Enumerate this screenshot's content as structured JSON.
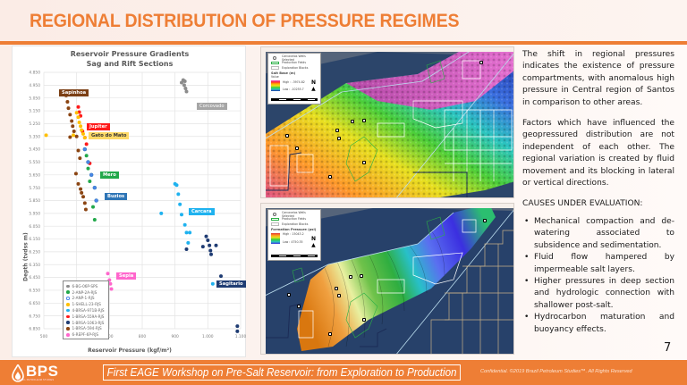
{
  "slide": {
    "title": "REGIONAL DISTRIBUTION OF PRESSURE REGIMES",
    "accent_color": "#ee7e35",
    "page_number": "7"
  },
  "chart": {
    "title_line1": "Reservoir Pressure Gradients",
    "title_line2": "Sag and Rift Sections",
    "ylabel": "Depth (tvdss m)",
    "xlabel": "Reservoir Pressure (kgf/m²)",
    "x_ticks": [
      "500",
      "600",
      "700",
      "800",
      "900",
      "1.000",
      "1.100"
    ],
    "y_ticks": [
      "4.850",
      "4.950",
      "5.050",
      "5.150",
      "5.250",
      "5.350",
      "5.450",
      "5.550",
      "5.650",
      "5.750",
      "5.850",
      "5.950",
      "6.050",
      "6.150",
      "6.250",
      "6.350",
      "6.450",
      "6.550",
      "6.650",
      "6.750",
      "6.850"
    ],
    "legend": [
      {
        "label": "6-BG-06P-SPS",
        "color": "#8c8c8c"
      },
      {
        "label": "2-ANP-2A-RJS",
        "color": "#22a84a"
      },
      {
        "label": "2-ANP-1-RJS",
        "color": "#4a86e8",
        "hollow": true
      },
      {
        "label": "1-SHELL-23-RJS",
        "color": "#ffc000"
      },
      {
        "label": "4-BRSA-971B-RJS",
        "color": "#1fb2ef"
      },
      {
        "label": "1-BRSA-559A-RJS",
        "color": "#ff1a1a"
      },
      {
        "label": "1-BRSA-1063-RJS",
        "color": "#1f3c73"
      },
      {
        "label": "1-BRSA-594-RJS",
        "color": "#8b4513"
      },
      {
        "label": "6-REPF-6P-RJS",
        "color": "#ff66cc"
      }
    ],
    "series_labels": [
      {
        "text": "Sapinhoa",
        "color": "#7b3f15"
      },
      {
        "text": "Jupiter",
        "color": "#ff1a1a"
      },
      {
        "text": "Gato do Mato",
        "color": "#ffd966",
        "text_color": "#333333"
      },
      {
        "text": "Corcovado",
        "color": "#a6a6a6"
      },
      {
        "text": "Mero",
        "color": "#22a84a"
      },
      {
        "text": "Buzios",
        "color": "#2e75b6"
      },
      {
        "text": "Carcara",
        "color": "#1fb2ef"
      },
      {
        "text": "Sagitario",
        "color": "#1f3c73"
      },
      {
        "text": "Sepia",
        "color": "#ff66cc"
      }
    ]
  },
  "chart_data": {
    "type": "scatter",
    "title": "Reservoir Pressure Gradients — Sag and Rift Sections",
    "xlabel": "Reservoir Pressure (kgf/m²)",
    "ylabel": "Depth (tvdss m)",
    "xlim": [
      500,
      1100
    ],
    "ylim": [
      6850,
      4850
    ],
    "y_inverted": true,
    "grid": true,
    "legend_position": "lower-left inside",
    "series": [
      {
        "name": "6-BG-06P-SPS",
        "field": "Corcovado",
        "color": "#8c8c8c",
        "points": [
          [
            920,
            4930
          ],
          [
            925,
            4910
          ],
          [
            930,
            4920
          ],
          [
            928,
            4950
          ],
          [
            932,
            4975
          ],
          [
            935,
            5000
          ]
        ]
      },
      {
        "name": "1-BRSA-594-RJS",
        "field": "Sapinhoa",
        "color": "#8b4513",
        "points": [
          [
            568,
            5030
          ],
          [
            572,
            5080
          ],
          [
            575,
            5130
          ],
          [
            580,
            5180
          ],
          [
            585,
            5230
          ],
          [
            588,
            5270
          ],
          [
            592,
            5310
          ],
          [
            580,
            5355
          ],
          [
            600,
            5350
          ],
          [
            605,
            5460
          ],
          [
            610,
            5520
          ],
          [
            598,
            5640
          ],
          [
            605,
            5720
          ],
          [
            612,
            5760
          ],
          [
            615,
            5790
          ],
          [
            620,
            5820
          ],
          [
            625,
            5870
          ],
          [
            628,
            5920
          ]
        ]
      },
      {
        "name": "1-BRSA-559A-RJS",
        "field": "Jupiter",
        "color": "#ff1a1a",
        "points": [
          [
            605,
            5120
          ],
          [
            608,
            5160
          ],
          [
            612,
            5190
          ],
          [
            618,
            5310
          ],
          [
            625,
            5360
          ],
          [
            630,
            5410
          ],
          [
            640,
            5560
          ]
        ]
      },
      {
        "name": "1-SHELL-23-RJS",
        "field": "Gato do Mato",
        "color": "#ffc000",
        "points": [
          [
            507,
            5340
          ],
          [
            590,
            5340
          ],
          [
            600,
            5165
          ],
          [
            605,
            5200
          ],
          [
            608,
            5240
          ],
          [
            612,
            5270
          ],
          [
            615,
            5300
          ],
          [
            620,
            5330
          ],
          [
            625,
            5360
          ]
        ]
      },
      {
        "name": "2-ANP-2A-RJS",
        "field": "Mero",
        "color": "#22a84a",
        "points": [
          [
            630,
            5500
          ],
          [
            635,
            5600
          ],
          [
            640,
            5700
          ],
          [
            650,
            5900
          ],
          [
            655,
            6000
          ]
        ]
      },
      {
        "name": "2-ANP-1-RJS",
        "field": "Buzios",
        "color": "#4a86e8",
        "points": [
          [
            625,
            5450
          ],
          [
            635,
            5550
          ],
          [
            645,
            5650
          ],
          [
            655,
            5750
          ],
          [
            660,
            5850
          ]
        ]
      },
      {
        "name": "4-BRSA-971B-RJS",
        "field": "Carcara",
        "color": "#1fb2ef",
        "points": [
          [
            900,
            5720
          ],
          [
            905,
            5730
          ],
          [
            910,
            5800
          ],
          [
            915,
            5880
          ],
          [
            920,
            5960
          ],
          [
            930,
            6040
          ],
          [
            935,
            6100
          ],
          [
            945,
            6100
          ],
          [
            940,
            6180
          ],
          [
            858,
            5950
          ],
          [
            1015,
            6500
          ]
        ]
      },
      {
        "name": "1-BRSA-1063-RJS",
        "field": "Sagitario",
        "color": "#1f3c73",
        "points": [
          [
            935,
            6230
          ],
          [
            985,
            6210
          ],
          [
            995,
            6130
          ],
          [
            1000,
            6160
          ],
          [
            1005,
            6200
          ],
          [
            1008,
            6240
          ],
          [
            1010,
            6270
          ],
          [
            1025,
            6200
          ],
          [
            1040,
            6440
          ],
          [
            1090,
            6830
          ],
          [
            1090,
            6870
          ]
        ]
      },
      {
        "name": "6-REPF-6P-RJS",
        "field": "Sepia",
        "color": "#ff66cc",
        "points": [
          [
            695,
            6420
          ],
          [
            700,
            6470
          ],
          [
            703,
            6500
          ],
          [
            706,
            6540
          ]
        ]
      }
    ]
  },
  "maps": {
    "top": {
      "legend_items": [
        "Carcavelos Wells Selected",
        "Production Fields",
        "Exploration Blocks"
      ],
      "layer_title": "Salt Base (m)",
      "layer_sub": "Value",
      "high_label": "High : -3974.82",
      "low_label": "Low : -10255.7",
      "north": "N"
    },
    "bottom": {
      "legend_items": [
        "Carcavelos Wells Selected",
        "Production Fields",
        "Exploration Blocks"
      ],
      "layer_title": "Formation Pressure (psi)",
      "high_label": "High : 15043.2",
      "low_label": "Low : 4750.35",
      "north": "N"
    }
  },
  "text": {
    "paragraph1": "The shift in regional pressures indicates the existence of pressure compartments, with anomalous high pressure in Central region of Santos in comparison to other areas.",
    "paragraph2": "Factors which have influenced the geopressured distribution are not independent of each other. The regional variation is created by fluid movement and its blocking in lateral or vertical directions.",
    "causes_title": "CAUSES UNDER EVALUATION:",
    "causes": [
      "Mechanical compaction and de-watering associated to subsidence and sedimentation.",
      "Fluid flow hampered by impermeable salt layers.",
      "Higher pressures in deep section and hydrologic connection with shallower post-salt.",
      "Hydrocarbon maturation and buoyancy effects."
    ]
  },
  "footer": {
    "logo": "BPS",
    "logo_sub": "BRAZIL PETROLEUM STUDIES",
    "workshop": "First EAGE Workshop on Pre-Salt Reservoir: from Exploration to Production",
    "confidential": "Confidential. ©2019 Brazil Petroleum Studies™. All Rights Reserved"
  }
}
